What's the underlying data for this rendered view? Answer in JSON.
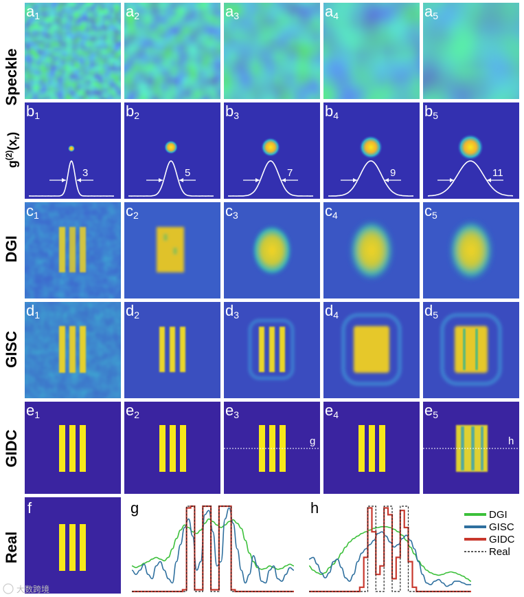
{
  "rows": [
    {
      "key": "a",
      "label": "Speckle"
    },
    {
      "key": "b",
      "label_main": "g",
      "label_sup": "(2)",
      "label_mid": "(x",
      "label_sub": "r",
      "label_end": ")"
    },
    {
      "key": "c",
      "label": "DGI"
    },
    {
      "key": "d",
      "label": "GISC"
    },
    {
      "key": "e",
      "label": "GIDC"
    },
    {
      "key": "f",
      "label": "Real"
    }
  ],
  "columns": [
    "1",
    "2",
    "3",
    "4",
    "5"
  ],
  "panel_letters": {
    "a": "a",
    "b": "b",
    "c": "c",
    "d": "d",
    "e": "e",
    "f": "f",
    "g": "g",
    "h": "h"
  },
  "fwhm_values": [
    "3",
    "5",
    "7",
    "9",
    "11"
  ],
  "line_markers": {
    "e3": "g",
    "e5": "h"
  },
  "colors": {
    "background_blue": "#3a24a0",
    "bar_yellow": "#f7e81a",
    "dgi_line": "#3cc03a",
    "gisc_line": "#2e6f9e",
    "gidc_line": "#c8372c",
    "real_line": "#222222"
  },
  "chart_data": [
    {
      "type": "line",
      "title": "g",
      "xlabel": "",
      "ylabel": "",
      "legend": "none",
      "x": [
        0,
        1,
        2,
        3,
        4,
        5,
        6,
        7,
        8,
        9,
        10,
        11,
        12,
        13,
        14,
        15,
        16,
        17,
        18,
        19,
        20,
        21,
        22,
        23,
        24,
        25,
        26,
        27,
        28,
        29,
        30,
        31,
        32,
        33,
        34,
        35,
        36,
        37,
        38,
        39,
        40
      ],
      "ylim": [
        0,
        1
      ],
      "series": [
        {
          "name": "DGI",
          "values": [
            0.3,
            0.28,
            0.3,
            0.33,
            0.35,
            0.38,
            0.4,
            0.38,
            0.36,
            0.4,
            0.5,
            0.62,
            0.72,
            0.78,
            0.75,
            0.7,
            0.68,
            0.72,
            0.8,
            0.85,
            0.82,
            0.78,
            0.75,
            0.78,
            0.82,
            0.84,
            0.8,
            0.74,
            0.6,
            0.45,
            0.35,
            0.28,
            0.26,
            0.27,
            0.3,
            0.28,
            0.26,
            0.27,
            0.3,
            0.32,
            0.3
          ]
        },
        {
          "name": "GISC",
          "values": [
            0.25,
            0.2,
            0.25,
            0.32,
            0.2,
            0.15,
            0.3,
            0.35,
            0.25,
            0.15,
            0.1,
            0.35,
            0.55,
            0.75,
            0.85,
            0.65,
            0.25,
            0.35,
            0.9,
            0.95,
            0.7,
            0.3,
            0.35,
            0.85,
            0.98,
            0.8,
            0.5,
            0.25,
            0.1,
            0.2,
            0.42,
            0.3,
            0.12,
            0.1,
            0.25,
            0.3,
            0.15,
            0.12,
            0.2,
            0.28,
            0.25
          ]
        },
        {
          "name": "GIDC",
          "values": [
            0,
            0,
            0,
            0,
            0,
            0,
            0,
            0,
            0,
            0,
            0,
            0,
            0,
            0.02,
            0.98,
            1,
            0.02,
            0.02,
            1,
            1,
            0.02,
            0.02,
            1,
            1,
            1,
            0.02,
            0,
            0,
            0,
            0,
            0,
            0,
            0,
            0,
            0,
            0,
            0,
            0,
            0,
            0,
            0
          ]
        },
        {
          "name": "Real",
          "values": [
            0,
            0,
            0,
            0,
            0,
            0,
            0,
            0,
            0,
            0,
            0,
            0,
            0,
            0,
            1,
            1,
            0,
            0,
            1,
            1,
            0,
            0,
            1,
            1,
            1,
            0,
            0,
            0,
            0,
            0,
            0,
            0,
            0,
            0,
            0,
            0,
            0,
            0,
            0,
            0,
            0
          ]
        }
      ]
    },
    {
      "type": "line",
      "title": "h",
      "xlabel": "",
      "ylabel": "",
      "legend": "right",
      "x": [
        0,
        1,
        2,
        3,
        4,
        5,
        6,
        7,
        8,
        9,
        10,
        11,
        12,
        13,
        14,
        15,
        16,
        17,
        18,
        19,
        20,
        21,
        22,
        23,
        24,
        25,
        26,
        27,
        28,
        29,
        30,
        31,
        32,
        33,
        34,
        35,
        36,
        37,
        38,
        39,
        40
      ],
      "ylim": [
        0,
        1
      ],
      "series": [
        {
          "name": "DGI",
          "values": [
            0.3,
            0.25,
            0.22,
            0.2,
            0.22,
            0.28,
            0.32,
            0.38,
            0.45,
            0.52,
            0.58,
            0.62,
            0.65,
            0.68,
            0.7,
            0.72,
            0.74,
            0.75,
            0.76,
            0.76,
            0.75,
            0.73,
            0.7,
            0.66,
            0.6,
            0.52,
            0.44,
            0.36,
            0.3,
            0.25,
            0.22,
            0.2,
            0.19,
            0.2,
            0.22,
            0.23,
            0.22,
            0.2,
            0.18,
            0.15,
            0.12
          ]
        },
        {
          "name": "GISC",
          "values": [
            0.38,
            0.4,
            0.32,
            0.22,
            0.16,
            0.22,
            0.35,
            0.38,
            0.28,
            0.16,
            0.12,
            0.2,
            0.35,
            0.45,
            0.5,
            0.55,
            0.6,
            0.68,
            0.7,
            0.65,
            0.58,
            0.52,
            0.55,
            0.62,
            0.66,
            0.6,
            0.5,
            0.35,
            0.2,
            0.1,
            0.08,
            0.12,
            0.14,
            0.1,
            0.06,
            0.08,
            0.12,
            0.12,
            0.1,
            0.08,
            0.08
          ]
        },
        {
          "name": "GIDC",
          "values": [
            0,
            0,
            0,
            0,
            0,
            0,
            0,
            0,
            0,
            0,
            0,
            0,
            0,
            0.05,
            0.4,
            0.98,
            0.7,
            0.2,
            0.3,
            0.98,
            0.9,
            0.15,
            0.4,
            0.95,
            0.75,
            0.35,
            0.05,
            0,
            0,
            0,
            0,
            0,
            0,
            0,
            0,
            0,
            0,
            0,
            0,
            0,
            0
          ]
        },
        {
          "name": "Real",
          "values": [
            0,
            0,
            0,
            0,
            0,
            0,
            0,
            0,
            0,
            0,
            0,
            0,
            0,
            0,
            0,
            1,
            1,
            0,
            0,
            1,
            1,
            0,
            0,
            1,
            1,
            0,
            0,
            0,
            0,
            0,
            0,
            0,
            0,
            0,
            0,
            0,
            0,
            0,
            0,
            0,
            0
          ]
        }
      ]
    }
  ],
  "watermark": "大数跨境"
}
